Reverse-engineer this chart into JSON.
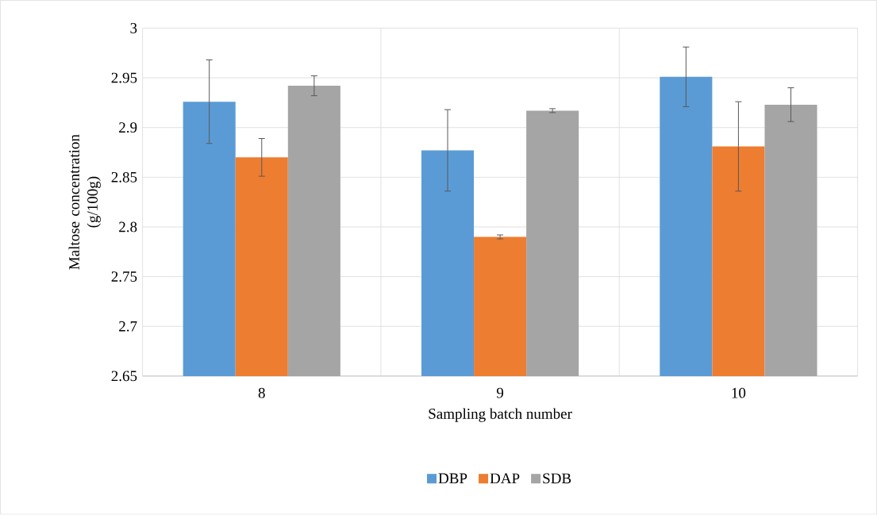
{
  "chart_data": {
    "type": "bar",
    "xlabel": "Sampling batch number",
    "ylabel": "Maltose concentration (g/100g)",
    "categories": [
      "8",
      "9",
      "10"
    ],
    "series": [
      {
        "name": "DBP",
        "color": "#5b9bd5",
        "values": [
          2.926,
          2.877,
          2.951
        ],
        "errors": [
          0.042,
          0.041,
          0.03
        ]
      },
      {
        "name": "DAP",
        "color": "#ed7d31",
        "values": [
          2.87,
          2.79,
          2.881
        ],
        "errors": [
          0.019,
          0.002,
          0.045
        ]
      },
      {
        "name": "SDB",
        "color": "#a5a5a5",
        "values": [
          2.942,
          2.917,
          2.923
        ],
        "errors": [
          0.01,
          0.002,
          0.017
        ]
      }
    ],
    "ylim": [
      2.65,
      3
    ],
    "yticks": [
      2.65,
      2.7,
      2.75,
      2.8,
      2.85,
      2.9,
      2.95,
      3
    ],
    "grid": true,
    "legend": "bottom"
  }
}
